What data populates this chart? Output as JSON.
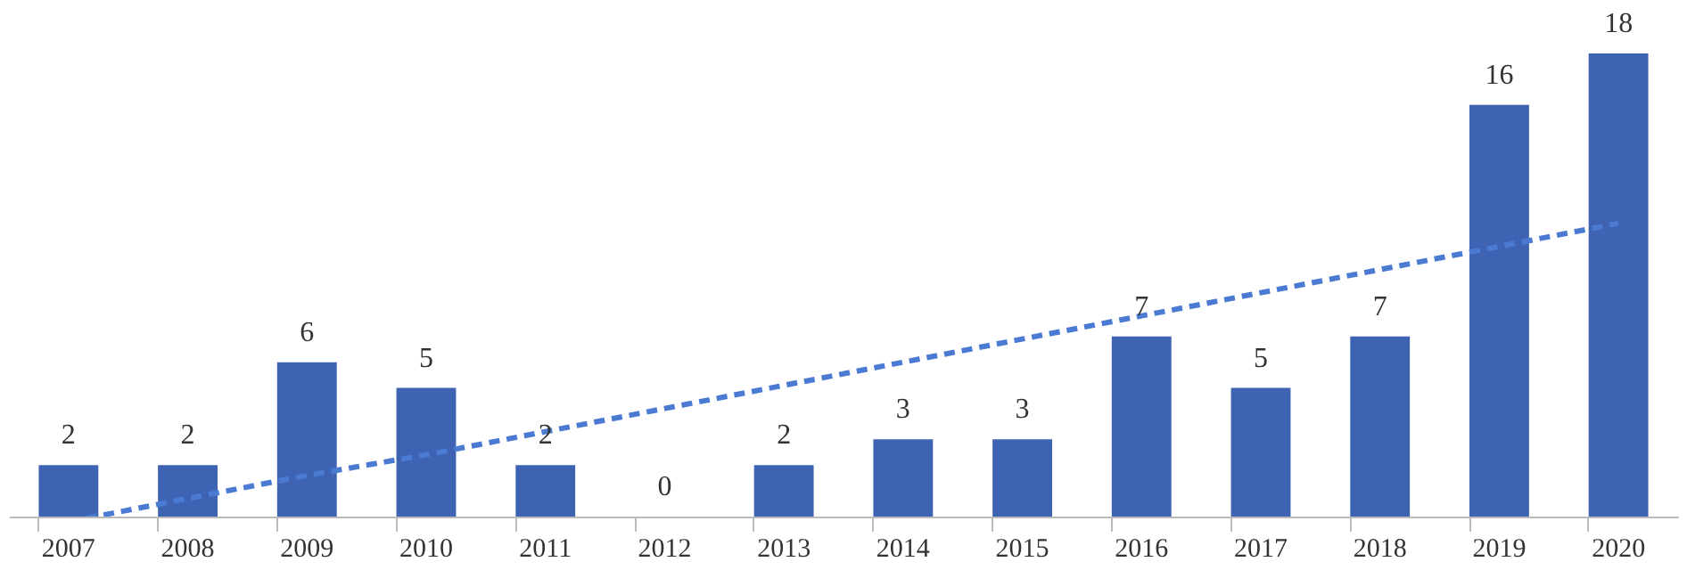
{
  "chart_data": {
    "type": "bar",
    "categories": [
      "2007",
      "2008",
      "2009",
      "2010",
      "2011",
      "2012",
      "2013",
      "2014",
      "2015",
      "2016",
      "2017",
      "2018",
      "2019",
      "2020"
    ],
    "series": [
      {
        "color": "#3e63b2",
        "values": [
          2,
          2,
          6,
          5,
          2,
          0,
          2,
          3,
          3,
          7,
          5,
          7,
          16,
          18
        ]
      },
      {
        "type": "line",
        "color": "#4a7ad2",
        "line_style": "dashed",
        "values": [
          -0.2,
          0.7,
          1.6,
          2.4,
          3.3,
          4.2,
          5.1,
          6.0,
          6.9,
          7.8,
          8.7,
          9.6,
          10.5,
          11.4
        ],
        "value_labels": [
          null,
          null,
          null,
          null,
          null,
          null,
          null,
          null,
          null,
          null,
          null,
          null,
          null,
          null
        ]
      }
    ],
    "data_labels": true,
    "tick_labels": "x"
  }
}
